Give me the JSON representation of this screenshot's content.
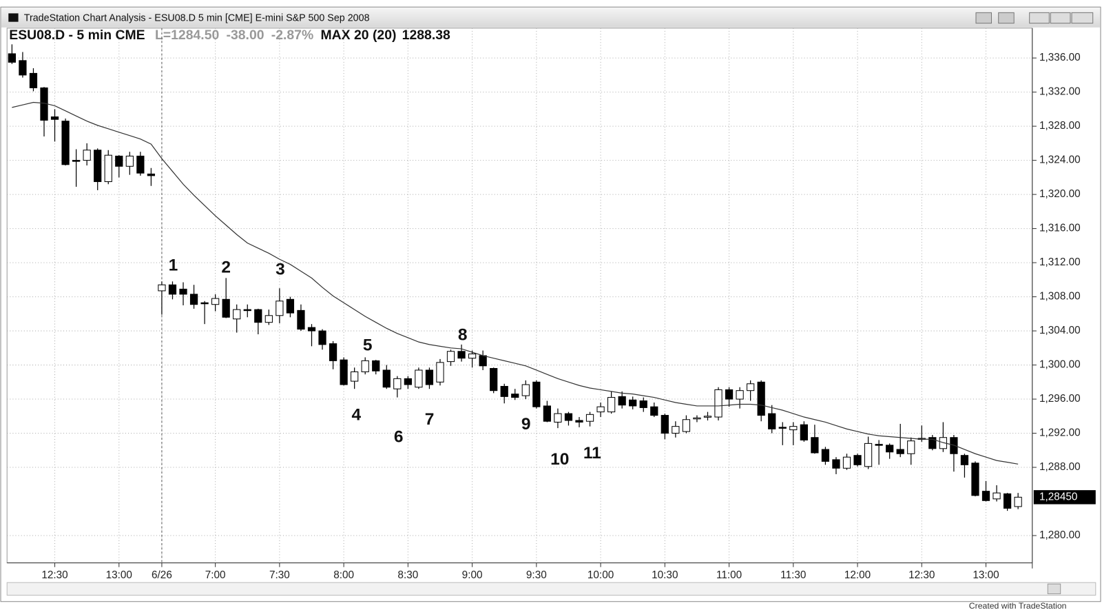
{
  "window": {
    "title": "TradeStation Chart Analysis - ESU08.D 5 min [CME] E-mini S&P 500 Sep 2008",
    "footer": "Created with TradeStation"
  },
  "chart_data": {
    "type": "candlestick",
    "header": {
      "last": "L=1284.50",
      "change": "-38.00",
      "change_pct": "-2.87%",
      "indicator_value": "1288.38"
    },
    "categories": [
      null,
      null,
      null,
      null,
      "12:30",
      null,
      null,
      null,
      null,
      null,
      "13:00",
      null,
      null,
      null,
      "6/26",
      null,
      null,
      null,
      null,
      "7:00",
      null,
      null,
      null,
      null,
      null,
      "7:30",
      null,
      null,
      null,
      null,
      null,
      "8:00",
      null,
      null,
      null,
      null,
      null,
      "8:30",
      null,
      null,
      null,
      null,
      null,
      "9:00",
      null,
      null,
      null,
      null,
      null,
      "9:30",
      null,
      null,
      null,
      null,
      null,
      "10:00",
      null,
      null,
      null,
      null,
      null,
      "10:30",
      null,
      null,
      null,
      null,
      null,
      "11:00",
      null,
      null,
      null,
      null,
      null,
      "11:30",
      null,
      null,
      null,
      null,
      null,
      "12:00",
      null,
      null,
      null,
      null,
      null,
      "12:30",
      null,
      null,
      null,
      null,
      null,
      "13:00",
      null,
      null,
      null
    ],
    "series": [
      {
        "name": "ESU08.D - 5 min CME",
        "up_color": "#ffffff",
        "down_color": "#000000",
        "open": [
          1336.5,
          1335.7,
          1334.2,
          1332.5,
          1329.1,
          1328.6,
          1324,
          1324,
          1325.2,
          1321.5,
          1324.5,
          1323.3,
          1324.5,
          1322.4,
          1308.7,
          1309.4,
          1308.9,
          1308.3,
          1307.3,
          1307.1,
          1307.7,
          1305.4,
          1306.5,
          1306.5,
          1305,
          1305.8,
          1307.7,
          1306.4,
          1304.4,
          1304,
          1302.5,
          1300.6,
          1298.1,
          1299.2,
          1300.5,
          1299.4,
          1297.2,
          1298.4,
          1297.4,
          1299.4,
          1298,
          1300.4,
          1301.6,
          1300.8,
          1301.1,
          1299.6,
          1297.5,
          1296.6,
          1296.4,
          1298,
          1295.2,
          1293.3,
          1294.3,
          1293.5,
          1293.4,
          1294.5,
          1294.5,
          1296.3,
          1295.9,
          1295.8,
          1295.1,
          1294.1,
          1292,
          1292.2,
          1293.7,
          1293.9,
          1293.9,
          1297.1,
          1296,
          1297,
          1298,
          1294.3,
          1292.7,
          1292.4,
          1293,
          1291.5,
          1290.1,
          1288.9,
          1287.9,
          1289.4,
          1288.1,
          1290.7,
          1290.6,
          1290.1,
          1289.6,
          1291.3,
          1291.5,
          1290.2,
          1291.5,
          1289.4,
          1288.5,
          1285.2,
          1284.3,
          1284.9,
          1283.4
        ],
        "high": [
          1337.6,
          1336.7,
          1334.8,
          1332.6,
          1330,
          1328.9,
          1325.3,
          1326,
          1325.4,
          1325.2,
          1324.6,
          1325,
          1325,
          1323.1,
          1309.8,
          1309.8,
          1309.7,
          1309.4,
          1307.5,
          1308.3,
          1310.2,
          1307.1,
          1307.1,
          1306.6,
          1306.5,
          1309,
          1308,
          1307.1,
          1304.8,
          1304.2,
          1302.8,
          1300.9,
          1299.7,
          1300.9,
          1300.6,
          1300,
          1298.7,
          1298.7,
          1299.7,
          1299.7,
          1300.7,
          1301.8,
          1302.4,
          1301.7,
          1301.7,
          1299.7,
          1297.8,
          1297.2,
          1298.2,
          1298.2,
          1295.8,
          1294.9,
          1294.5,
          1293.9,
          1294.5,
          1295.6,
          1296.9,
          1296.9,
          1296.3,
          1296.2,
          1295.6,
          1294.3,
          1293.4,
          1294.1,
          1294.1,
          1294.5,
          1297.4,
          1297.4,
          1297.4,
          1298.2,
          1298.2,
          1295.3,
          1293.3,
          1293.3,
          1293.4,
          1293,
          1290.4,
          1289.2,
          1289.6,
          1289.6,
          1291.6,
          1291.2,
          1290.8,
          1293.1,
          1291.5,
          1292.9,
          1291.8,
          1293.3,
          1291.8,
          1289.6,
          1288.7,
          1286.4,
          1285.9,
          1285,
          1285
        ],
        "low": [
          1335.3,
          1333.7,
          1332.1,
          1326.8,
          1326.2,
          1323.4,
          1320.9,
          1323.4,
          1320.5,
          1321.2,
          1322,
          1322.3,
          1322.2,
          1321,
          1305.9,
          1307.7,
          1307,
          1306.6,
          1304.8,
          1306.3,
          1305.5,
          1303.8,
          1305.6,
          1303.6,
          1304.7,
          1304.9,
          1305.6,
          1304,
          1302.2,
          1301.8,
          1299.5,
          1297.6,
          1297.2,
          1298.9,
          1298.9,
          1297.2,
          1296.2,
          1297.2,
          1297.2,
          1297.2,
          1297.6,
          1299.9,
          1300.4,
          1299.7,
          1299.4,
          1296.7,
          1295.5,
          1295.9,
          1296,
          1294.9,
          1293.3,
          1292.6,
          1292.9,
          1292.7,
          1292.8,
          1293.9,
          1294.3,
          1294.9,
          1294.8,
          1294.5,
          1293.9,
          1291.3,
          1291.5,
          1292,
          1293.3,
          1293.5,
          1293.5,
          1295.1,
          1294.9,
          1295.8,
          1293.4,
          1292,
          1290.6,
          1290.6,
          1291,
          1289.6,
          1288.3,
          1287.2,
          1287.7,
          1288.1,
          1287.8,
          1288.3,
          1289,
          1289.2,
          1288.3,
          1291,
          1290,
          1289.8,
          1287.5,
          1286.8,
          1284.6,
          1284,
          1284,
          1282.9,
          1283.1
        ],
        "close": [
          1335.5,
          1334,
          1332.5,
          1328.7,
          1328.8,
          1323.5,
          1323.9,
          1325.2,
          1321.5,
          1324.6,
          1323.3,
          1324.5,
          1322.5,
          1322.2,
          1309.4,
          1308.3,
          1308.3,
          1307.1,
          1307.2,
          1307.8,
          1305.6,
          1306.5,
          1306.4,
          1305,
          1305.8,
          1307.5,
          1306.1,
          1304.2,
          1304,
          1302.4,
          1300.5,
          1297.7,
          1299.2,
          1300.5,
          1299.3,
          1297.4,
          1298.4,
          1297.7,
          1299.4,
          1297.7,
          1300.3,
          1301.6,
          1300.8,
          1301.3,
          1299.9,
          1297,
          1296.3,
          1296.2,
          1297.7,
          1295.1,
          1293.4,
          1294.3,
          1293.5,
          1293.3,
          1294.2,
          1295.1,
          1296.2,
          1295.3,
          1295.2,
          1295,
          1294.1,
          1292,
          1292.8,
          1293.6,
          1293.8,
          1294,
          1297.1,
          1296,
          1297,
          1297.8,
          1294.1,
          1292.5,
          1292.6,
          1292.8,
          1291.2,
          1289.7,
          1288.7,
          1287.9,
          1289.2,
          1288.3,
          1290.8,
          1290.6,
          1289.8,
          1289.6,
          1291.1,
          1291.4,
          1290.2,
          1291.5,
          1289.6,
          1288.3,
          1284.7,
          1284.1,
          1285,
          1283.2,
          1284.5
        ]
      },
      {
        "name": "MAX 20 (20)",
        "type": "line",
        "color": "#333333",
        "values": [
          1330.2,
          1330.5,
          1330.8,
          1330.7,
          1330.4,
          1329.8,
          1329.2,
          1328.6,
          1328.1,
          1327.7,
          1327.3,
          1326.9,
          1326.5,
          1325.9,
          1324.2,
          1322.7,
          1321.2,
          1319.9,
          1318.7,
          1317.5,
          1316.4,
          1315.3,
          1314.3,
          1313.7,
          1313.1,
          1312.4,
          1311.8,
          1311,
          1310.2,
          1309.1,
          1308.1,
          1307.3,
          1306.5,
          1305.7,
          1305,
          1304.3,
          1303.7,
          1303.2,
          1302.7,
          1302.4,
          1302.2,
          1302,
          1301.9,
          1301.5,
          1301.1,
          1300.8,
          1300.5,
          1300.2,
          1299.9,
          1299.4,
          1298.9,
          1298.4,
          1298,
          1297.6,
          1297.3,
          1297.1,
          1296.9,
          1296.7,
          1296.6,
          1296.4,
          1296.2,
          1295.9,
          1295.6,
          1295.4,
          1295.2,
          1295.2,
          1295.2,
          1295.3,
          1295.4,
          1295.4,
          1295.3,
          1295,
          1294.7,
          1294.3,
          1293.9,
          1293.6,
          1293.3,
          1292.9,
          1292.5,
          1292.2,
          1291.9,
          1291.7,
          1291.6,
          1291.5,
          1291.4,
          1291.3,
          1291.3,
          1290.9,
          1290.6,
          1290.1,
          1289.6,
          1289.2,
          1288.8,
          1288.6,
          1288.38
        ]
      }
    ],
    "ylim": [
      1276.8,
      1339.5
    ],
    "yticks": [
      {
        "value": 1280,
        "label": "1,280.00"
      },
      {
        "value": 1288,
        "label": "1,288.00"
      },
      {
        "value": 1292,
        "label": "1,292.00"
      },
      {
        "value": 1296,
        "label": "1,296.00"
      },
      {
        "value": 1300,
        "label": "1,300.00"
      },
      {
        "value": 1304,
        "label": "1,304.00"
      },
      {
        "value": 1308,
        "label": "1,308.00"
      },
      {
        "value": 1312,
        "label": "1,312.00"
      },
      {
        "value": 1316,
        "label": "1,316.00"
      },
      {
        "value": 1320,
        "label": "1,320.00"
      },
      {
        "value": 1324,
        "label": "1,324.00"
      },
      {
        "value": 1328,
        "label": "1,328.00"
      },
      {
        "value": 1332,
        "label": "1,332.00"
      },
      {
        "value": 1336,
        "label": "1,336.00"
      }
    ],
    "grid": true,
    "last_price": {
      "value": 1284.5,
      "label": "1,28450"
    },
    "annotations": [
      "1",
      "2",
      "3",
      "4",
      "5",
      "6",
      "7",
      "8",
      "9",
      "10",
      "11"
    ]
  }
}
